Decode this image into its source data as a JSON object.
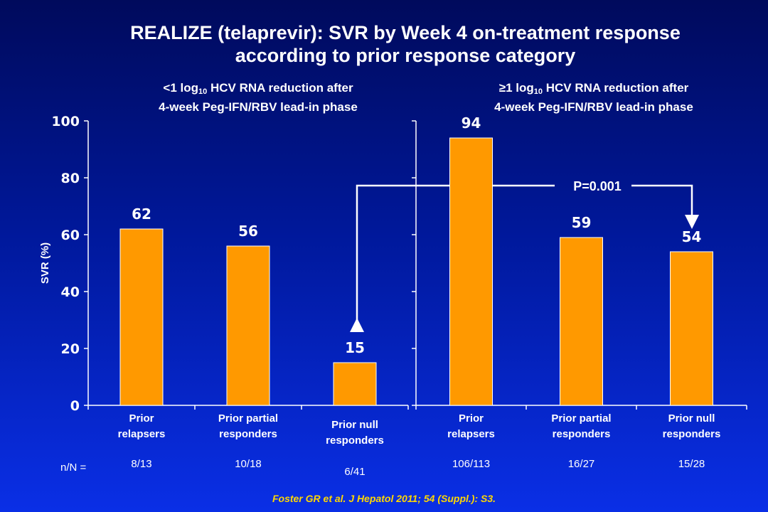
{
  "title_line1": "REALIZE (telaprevir): SVR by Week 4 on-treatment response",
  "title_line2": "according to prior response category",
  "reference": "Foster GR et al. J Hepatol 2011; 54 (Suppl.): S3.",
  "n_label": "n/N =",
  "colors": {
    "bar": "#ff9900",
    "bar_border": "#ffffff",
    "axis": "#ffffff",
    "title": "#ffffff",
    "reference": "#ffd700"
  },
  "chart_data": [
    {
      "type": "bar",
      "panel_title": {
        "pre": "<1 log",
        "sub": "10",
        "post": " HCV RNA reduction after",
        "line2": "4-week Peg-IFN/RBV lead-in phase"
      },
      "categories": [
        [
          "Prior",
          "relapsers"
        ],
        [
          "Prior partial",
          "responders"
        ],
        [
          "Prior null",
          "responders"
        ]
      ],
      "values": [
        62,
        56,
        15
      ],
      "data_labels": [
        "62",
        "56",
        "15"
      ],
      "n_over_N": [
        "8/13",
        "10/18",
        "6/41"
      ],
      "ylabel": "SVR (%)",
      "ylim": [
        0,
        100
      ],
      "yticks": [
        0,
        20,
        40,
        60,
        80,
        100
      ],
      "grid": false
    },
    {
      "type": "bar",
      "panel_title": {
        "pre": "≥1 log",
        "sub": "10",
        "post": " HCV RNA reduction after",
        "line2": "4-week Peg-IFN/RBV lead-in phase"
      },
      "categories": [
        [
          "Prior",
          "relapsers"
        ],
        [
          "Prior partial",
          "responders"
        ],
        [
          "Prior null",
          "responders"
        ]
      ],
      "values": [
        94,
        59,
        54
      ],
      "data_labels": [
        "94",
        "59",
        "54"
      ],
      "n_over_N": [
        "106/113",
        "16/27",
        "15/28"
      ],
      "ylim": [
        0,
        100
      ],
      "grid": false
    }
  ],
  "comparison": {
    "label": "P=0.001",
    "from": "Prior null responders (<1 log10)",
    "to": "Prior null responders (≥1 log10)"
  }
}
